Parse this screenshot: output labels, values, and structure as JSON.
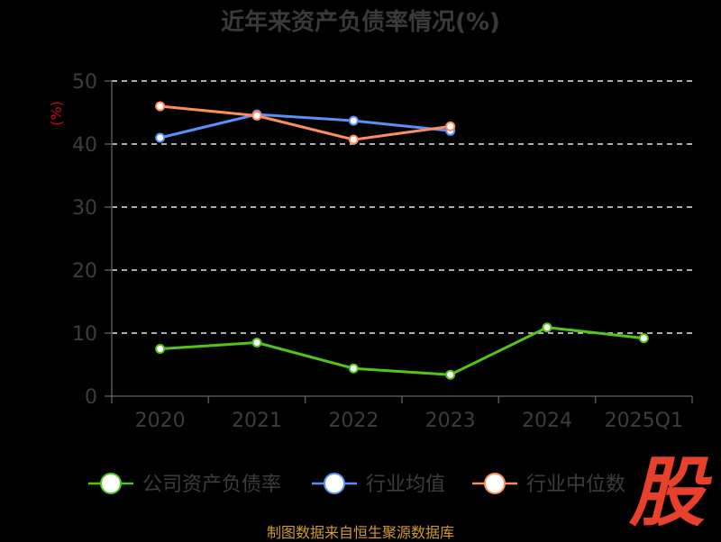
{
  "title": "近年来资产负债率情况(%)",
  "source_note": "制图数据来自恒生聚源数据库",
  "logo_text": "股",
  "chart_data": {
    "type": "line",
    "title": "近年来资产负债率情况(%)",
    "ylabel": "(%)",
    "ylim": [
      0,
      50
    ],
    "yticks": [
      "0",
      "10",
      "20",
      "30",
      "40",
      "50"
    ],
    "categories": [
      "2020",
      "2021",
      "2022",
      "2023",
      "2024",
      "2025Q1"
    ],
    "grid": true,
    "legend_position": "bottom",
    "series": [
      {
        "name": "公司资产负债率",
        "color": "#52c41a",
        "values": [
          7.5,
          8.5,
          4.4,
          3.4,
          10.9,
          9.2
        ]
      },
      {
        "name": "行业均值",
        "color": "#5b8ff9",
        "values": [
          41.0,
          44.7,
          43.7,
          42.1,
          null,
          null
        ]
      },
      {
        "name": "行业中位数",
        "color": "#ff8c5a",
        "values": [
          46.0,
          44.5,
          40.7,
          42.8,
          null,
          null
        ]
      }
    ]
  }
}
